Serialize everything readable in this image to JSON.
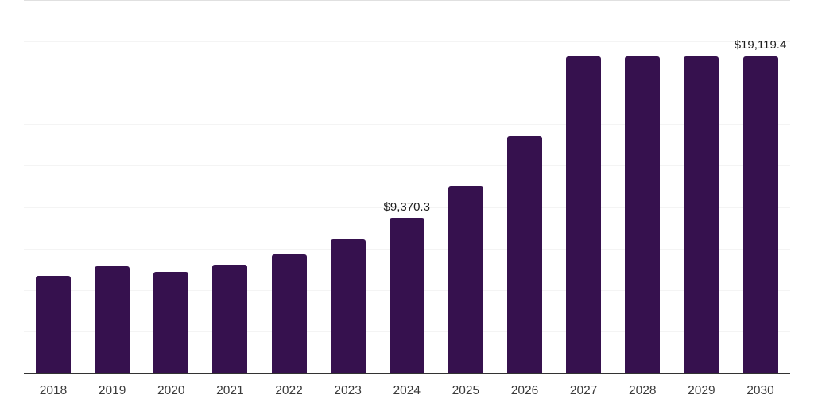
{
  "chart_data": {
    "type": "bar",
    "title": "",
    "xlabel": "",
    "ylabel": "",
    "categories": [
      "2018",
      "2019",
      "2020",
      "2021",
      "2022",
      "2023",
      "2024",
      "2025",
      "2026",
      "2027",
      "2028",
      "2029",
      "2030"
    ],
    "values": [
      5870,
      6450,
      6110,
      6550,
      7170,
      8060,
      9370.3,
      11300,
      14280,
      19100,
      19100,
      19100,
      19119.4
    ],
    "data_labels": [
      {
        "category": "2024",
        "text": "$9,370.3"
      },
      {
        "category": "2030",
        "text": "$19,119.4"
      }
    ],
    "ylim": [
      0,
      22500
    ],
    "y_divisions": 9,
    "grid": "horizontal",
    "legend": "none",
    "colors": {
      "bar": "#36114e",
      "axis_line": "#333333",
      "gridline": "#f4f4f4",
      "top_border": "#e0e0e0",
      "tick_label": "#3a3a3a",
      "data_label": "#1c1c1c",
      "background": "#ffffff"
    }
  }
}
